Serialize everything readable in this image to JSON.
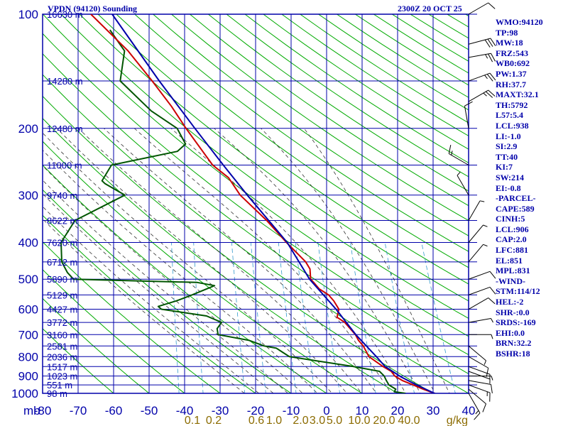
{
  "header": {
    "title": "VPDN (94120) Sounding",
    "time": "2300Z 20 OCT 25"
  },
  "indices": [
    "WMO:94120",
    "TP:98",
    "MW:18",
    "FRZ:543",
    "WB0:692",
    "PW:1.37",
    "RH:37.7",
    "MAXT:32.1",
    "TH:5792",
    "L57:5.4",
    "LCL:938",
    "LI:-1.0",
    "SI:2.9",
    "TT:40",
    "KI:7",
    "SW:214",
    "EI:-0.8",
    "-PARCEL-",
    "CAPE:589",
    "CINH:5",
    "LCL:906",
    "CAP:2.0",
    "LFC:881",
    "EL:851",
    "MPL:831",
    "-WIND-",
    "STM:114/12",
    "HEL:-2",
    "SHR-:0.0",
    "SRDS:-169",
    "EHI:0.0",
    "BRN:32.2",
    "BSHR:18"
  ],
  "colors": {
    "frame": "#0000aa",
    "temperature": "#cc0000",
    "dewpoint": "#005500",
    "parcel": "#0000aa",
    "dry_adiabat": "#00aa00",
    "moist_adiabat": "#333333",
    "mixing_ratio": "#3399cc",
    "wind": "#000000",
    "mixing_label": "#8b6b00"
  },
  "chart_data": {
    "type": "skew-t",
    "pressure_unit_label": "mb",
    "x_ticks": [
      -80,
      -70,
      -60,
      -50,
      -40,
      -30,
      -20,
      -10,
      0,
      10,
      20,
      30,
      40
    ],
    "x_tick_labels": [
      "-80",
      "-70",
      "-60",
      "-50",
      "-40",
      "-30",
      "-20",
      "-10",
      "0",
      "10",
      "20",
      "30",
      "40"
    ],
    "p_ticks": [
      100,
      200,
      300,
      400,
      500,
      600,
      700,
      800,
      900,
      1000
    ],
    "p_tick_labels": [
      "100",
      "200",
      "300",
      "400",
      "500",
      "600",
      "700",
      "800",
      "900",
      "1000"
    ],
    "height_labels": [
      {
        "p": 100,
        "label": "16630 m"
      },
      {
        "p": 150,
        "label": "14280 m"
      },
      {
        "p": 200,
        "label": "12480 m"
      },
      {
        "p": 250,
        "label": "11000 m"
      },
      {
        "p": 300,
        "label": "9740 m"
      },
      {
        "p": 350,
        "label": "8622 m"
      },
      {
        "p": 400,
        "label": "7620 m"
      },
      {
        "p": 450,
        "label": "6712 m"
      },
      {
        "p": 500,
        "label": "5890 m"
      },
      {
        "p": 550,
        "label": "5129 m"
      },
      {
        "p": 600,
        "label": "4427 m"
      },
      {
        "p": 650,
        "label": "3772 m"
      },
      {
        "p": 700,
        "label": "3160 m"
      },
      {
        "p": 750,
        "label": "2581 m"
      },
      {
        "p": 800,
        "label": "2036 m"
      },
      {
        "p": 850,
        "label": "1517 m"
      },
      {
        "p": 900,
        "label": "1023 m"
      },
      {
        "p": 950,
        "label": "551 m"
      },
      {
        "p": 1000,
        "label": "98 m"
      }
    ],
    "mixing_ratio_labels": [
      {
        "p": 1020,
        "t": -39,
        "label": "0.1"
      },
      {
        "p": 1020,
        "t": -33,
        "label": "0.2"
      },
      {
        "p": 1020,
        "t": -21,
        "label": "0.6"
      },
      {
        "p": 1020,
        "t": -16,
        "label": "1.0"
      },
      {
        "p": 1020,
        "t": -8.5,
        "label": "2.0"
      },
      {
        "p": 1020,
        "t": -3.8,
        "label": "3.0"
      },
      {
        "p": 1020,
        "t": 1,
        "label": "5.0"
      },
      {
        "p": 1020,
        "t": 8,
        "label": "10.0"
      },
      {
        "p": 1020,
        "t": 15,
        "label": "20.0"
      },
      {
        "p": 1020,
        "t": 22,
        "label": "40.0"
      }
    ],
    "mixing_unit": "g/kg",
    "temperature": [
      [
        1000,
        30.4
      ],
      [
        975,
        27
      ],
      [
        950,
        24
      ],
      [
        925,
        20.8
      ],
      [
        900,
        18.5
      ],
      [
        875,
        17.3
      ],
      [
        850,
        14.8
      ],
      [
        800,
        10.4
      ],
      [
        750,
        8.4
      ],
      [
        725,
        6.8
      ],
      [
        700,
        5.7
      ],
      [
        650,
        2.2
      ],
      [
        630,
        -0.2
      ],
      [
        600,
        0
      ],
      [
        570,
        -1.8
      ],
      [
        550,
        -3.5
      ],
      [
        530,
        -6.4
      ],
      [
        510,
        -8.2
      ],
      [
        500,
        -9.2
      ],
      [
        470,
        -9.8
      ],
      [
        450,
        -11.3
      ],
      [
        400,
        -17.5
      ],
      [
        350,
        -24
      ],
      [
        300,
        -32.5
      ],
      [
        270,
        -36.5
      ],
      [
        250,
        -41.5
      ],
      [
        200,
        -50.5
      ],
      [
        175,
        -55.5
      ],
      [
        150,
        -62
      ],
      [
        125,
        -70
      ],
      [
        100,
        -82
      ]
    ],
    "parcel": [
      [
        1000,
        30.4
      ],
      [
        950,
        25
      ],
      [
        906,
        20.4
      ],
      [
        850,
        15.4
      ],
      [
        800,
        12.5
      ],
      [
        700,
        5.8
      ],
      [
        600,
        -0.8
      ],
      [
        500,
        -9.5
      ],
      [
        400,
        -17.3
      ],
      [
        300,
        -30.5
      ],
      [
        250,
        -38.5
      ],
      [
        200,
        -48
      ],
      [
        150,
        -60
      ],
      [
        100,
        -76
      ]
    ],
    "dewpoint": [
      [
        1000,
        22.2
      ],
      [
        990,
        19
      ],
      [
        975,
        19.3
      ],
      [
        950,
        17.2
      ],
      [
        925,
        16.3
      ],
      [
        900,
        15.5
      ],
      [
        875,
        14
      ],
      [
        850,
        6.5
      ],
      [
        800,
        -12
      ],
      [
        780,
        -14
      ],
      [
        760,
        -16
      ],
      [
        750,
        -19.5
      ],
      [
        725,
        -24
      ],
      [
        700,
        -33
      ],
      [
        675,
        -33.5
      ],
      [
        650,
        -32.5
      ],
      [
        625,
        -37
      ],
      [
        600,
        -50
      ],
      [
        590,
        -51
      ],
      [
        570,
        -46
      ],
      [
        550,
        -42
      ],
      [
        520,
        -36
      ],
      [
        510,
        -41
      ],
      [
        500,
        -76
      ],
      [
        480,
        -78
      ],
      [
        450,
        -80
      ],
      [
        400,
        -81
      ],
      [
        350,
        -78
      ],
      [
        300,
        -65
      ],
      [
        280,
        -71
      ],
      [
        275,
        -72
      ],
      [
        250,
        -70
      ],
      [
        230,
        -52
      ],
      [
        220,
        -50
      ],
      [
        200,
        -53
      ],
      [
        180,
        -61
      ],
      [
        150,
        -71
      ],
      [
        125,
        -71
      ],
      [
        110,
        -76
      ]
    ],
    "winds": [
      {
        "p": 1000,
        "dir": 150,
        "spd": 15
      },
      {
        "p": 975,
        "dir": 130,
        "spd": 12
      },
      {
        "p": 950,
        "dir": 110,
        "spd": 18
      },
      {
        "p": 925,
        "dir": 100,
        "spd": 10
      },
      {
        "p": 900,
        "dir": 90,
        "spd": 8
      },
      {
        "p": 875,
        "dir": 110,
        "spd": 6
      },
      {
        "p": 850,
        "dir": 110,
        "spd": 8
      },
      {
        "p": 800,
        "dir": 120,
        "spd": 10
      },
      {
        "p": 750,
        "dir": 130,
        "spd": 7
      },
      {
        "p": 700,
        "dir": 90,
        "spd": 6
      },
      {
        "p": 650,
        "dir": 80,
        "spd": 9
      },
      {
        "p": 600,
        "dir": 60,
        "spd": 12
      },
      {
        "p": 550,
        "dir": 70,
        "spd": 14
      },
      {
        "p": 500,
        "dir": 70,
        "spd": 12
      },
      {
        "p": 450,
        "dir": 40,
        "spd": 7
      },
      {
        "p": 400,
        "dir": 40,
        "spd": 6
      },
      {
        "p": 350,
        "dir": 30,
        "spd": 5
      },
      {
        "p": 300,
        "dir": 330,
        "spd": 6
      },
      {
        "p": 250,
        "dir": 300,
        "spd": 18
      },
      {
        "p": 200,
        "dir": 350,
        "spd": 10
      },
      {
        "p": 170,
        "dir": 60,
        "spd": 25
      },
      {
        "p": 150,
        "dir": 70,
        "spd": 28
      },
      {
        "p": 130,
        "dir": 80,
        "spd": 28
      },
      {
        "p": 120,
        "dir": 75,
        "spd": 30
      },
      {
        "p": 100,
        "dir": 60,
        "spd": 12
      }
    ]
  }
}
